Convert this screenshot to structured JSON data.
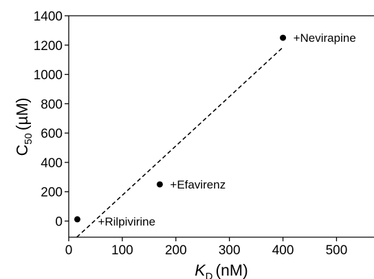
{
  "chart_data": {
    "type": "scatter",
    "xlabel": {
      "symbol": "K",
      "subscript": "D",
      "unit": "(nM)"
    },
    "ylabel": {
      "symbol": "C",
      "subscript": "50",
      "unit": "(µM)"
    },
    "xlim": [
      0,
      570
    ],
    "ylim": [
      -110,
      1400
    ],
    "x_ticks": [
      0,
      100,
      200,
      300,
      400,
      500
    ],
    "y_ticks": [
      0,
      200,
      400,
      600,
      800,
      1000,
      1200,
      1400
    ],
    "points": [
      {
        "x": 16,
        "y": 12,
        "label": "+Rilpivirine"
      },
      {
        "x": 170,
        "y": 250,
        "label": "+Efavirenz"
      },
      {
        "x": 400,
        "y": 1250,
        "label": "+Nevirapine"
      }
    ],
    "fit_line": {
      "style": "dashed",
      "from": {
        "x": 15,
        "y": -110
      },
      "to": {
        "x": 400,
        "y": 1185
      }
    },
    "grid": false,
    "legend": "none"
  }
}
